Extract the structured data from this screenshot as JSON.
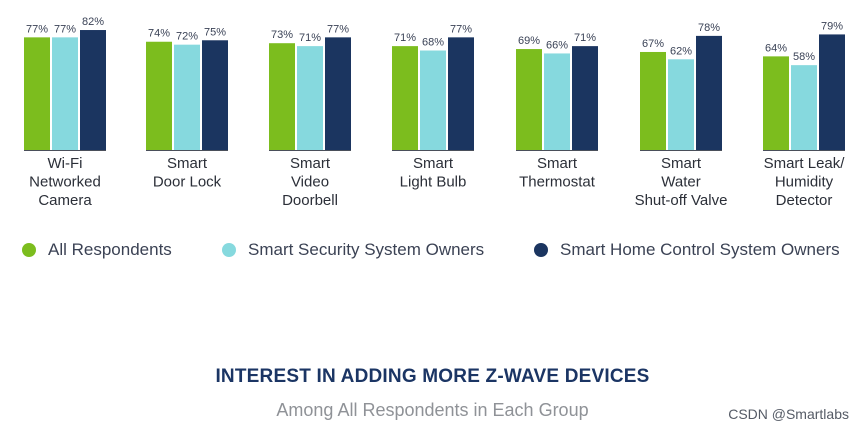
{
  "chart_data": {
    "type": "bar",
    "title": "INTEREST IN ADDING MORE Z-WAVE DEVICES",
    "subtitle": "Among All Respondents in Each Group",
    "categories": [
      [
        "Wi-Fi",
        "Networked",
        "Camera"
      ],
      [
        "Smart",
        "Door Lock"
      ],
      [
        "Smart",
        "Video",
        "Doorbell"
      ],
      [
        "Smart",
        "Light Bulb"
      ],
      [
        "Smart",
        "Thermostat"
      ],
      [
        "Smart",
        "Water",
        "Shut-off Valve"
      ],
      [
        "Smart Leak/",
        "Humidity",
        "Detector"
      ]
    ],
    "series": [
      {
        "name": "All Respondents",
        "color": "#7cbd1e",
        "values": [
          77,
          74,
          73,
          71,
          69,
          67,
          64
        ]
      },
      {
        "name": "Smart Security System Owners",
        "color": "#86d9de",
        "values": [
          77,
          72,
          71,
          68,
          66,
          62,
          58
        ]
      },
      {
        "name": "Smart Home Control System Owners",
        "color": "#1b3560",
        "values": [
          82,
          75,
          77,
          77,
          71,
          78,
          79
        ]
      }
    ],
    "value_suffix": "%",
    "ylim": [
      0,
      82
    ],
    "legend_position": "bottom"
  },
  "watermark": "CSDN @Smartlabs"
}
